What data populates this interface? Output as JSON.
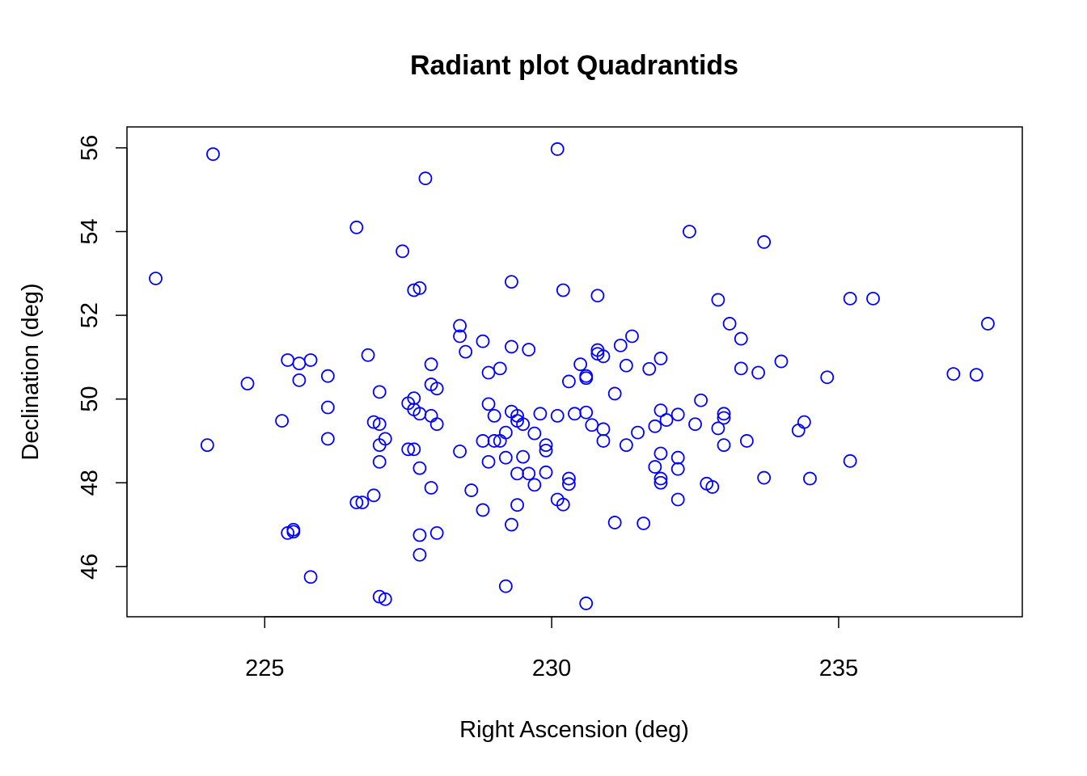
{
  "chart_data": {
    "type": "scatter",
    "title": "Radiant plot Quadrantids",
    "xlabel": "Right Ascension (deg)",
    "ylabel": "Declination (deg)",
    "xlim": [
      222.6,
      238.2
    ],
    "ylim": [
      44.8,
      56.5
    ],
    "xticks": [
      225,
      230,
      235
    ],
    "yticks": [
      46,
      48,
      50,
      52,
      54,
      56
    ],
    "grid": false,
    "legend": "none",
    "point_color": "#0000FF",
    "marker": "open-circle",
    "points": [
      [
        224.1,
        55.85
      ],
      [
        230.1,
        55.97
      ],
      [
        227.8,
        55.27
      ],
      [
        226.6,
        54.1
      ],
      [
        227.4,
        53.53
      ],
      [
        232.4,
        54.0
      ],
      [
        233.7,
        53.75
      ],
      [
        223.1,
        52.88
      ],
      [
        227.6,
        52.6
      ],
      [
        227.7,
        52.65
      ],
      [
        229.3,
        52.8
      ],
      [
        230.2,
        52.6
      ],
      [
        230.8,
        52.47
      ],
      [
        232.9,
        52.37
      ],
      [
        235.2,
        52.4
      ],
      [
        235.6,
        52.4
      ],
      [
        228.4,
        51.75
      ],
      [
        228.4,
        51.5
      ],
      [
        228.8,
        51.38
      ],
      [
        231.4,
        51.5
      ],
      [
        233.1,
        51.8
      ],
      [
        233.3,
        51.44
      ],
      [
        237.6,
        51.8
      ],
      [
        228.5,
        51.13
      ],
      [
        229.3,
        51.25
      ],
      [
        229.6,
        51.18
      ],
      [
        230.8,
        51.17
      ],
      [
        230.8,
        51.08
      ],
      [
        230.9,
        51.02
      ],
      [
        231.2,
        51.28
      ],
      [
        226.8,
        51.05
      ],
      [
        225.4,
        50.93
      ],
      [
        225.6,
        50.85
      ],
      [
        225.8,
        50.93
      ],
      [
        227.9,
        50.83
      ],
      [
        229.1,
        50.73
      ],
      [
        228.9,
        50.63
      ],
      [
        230.5,
        50.83
      ],
      [
        231.3,
        50.8
      ],
      [
        231.7,
        50.72
      ],
      [
        231.9,
        50.97
      ],
      [
        233.3,
        50.73
      ],
      [
        233.6,
        50.63
      ],
      [
        234.0,
        50.9
      ],
      [
        234.8,
        50.52
      ],
      [
        237.0,
        50.6
      ],
      [
        237.4,
        50.58
      ],
      [
        224.7,
        50.37
      ],
      [
        225.6,
        50.45
      ],
      [
        226.1,
        50.55
      ],
      [
        227.9,
        50.35
      ],
      [
        228.0,
        50.25
      ],
      [
        230.3,
        50.42
      ],
      [
        230.6,
        50.5
      ],
      [
        230.6,
        50.55
      ],
      [
        231.1,
        50.13
      ],
      [
        227.0,
        50.17
      ],
      [
        226.1,
        49.8
      ],
      [
        227.5,
        49.9
      ],
      [
        227.6,
        50.02
      ],
      [
        227.6,
        49.75
      ],
      [
        227.7,
        49.65
      ],
      [
        227.9,
        49.6
      ],
      [
        228.9,
        49.88
      ],
      [
        229.3,
        49.7
      ],
      [
        229.4,
        49.6
      ],
      [
        229.4,
        49.48
      ],
      [
        229.5,
        49.4
      ],
      [
        229.8,
        49.65
      ],
      [
        230.1,
        49.6
      ],
      [
        230.4,
        49.65
      ],
      [
        230.6,
        49.68
      ],
      [
        230.7,
        49.38
      ],
      [
        230.9,
        49.28
      ],
      [
        231.9,
        49.73
      ],
      [
        232.0,
        49.5
      ],
      [
        232.2,
        49.63
      ],
      [
        232.6,
        49.97
      ],
      [
        233.0,
        49.65
      ],
      [
        233.0,
        49.55
      ],
      [
        225.3,
        49.48
      ],
      [
        226.9,
        49.45
      ],
      [
        227.0,
        49.4
      ],
      [
        228.0,
        49.4
      ],
      [
        229.0,
        49.6
      ],
      [
        229.2,
        49.2
      ],
      [
        229.7,
        49.18
      ],
      [
        231.8,
        49.35
      ],
      [
        232.5,
        49.4
      ],
      [
        232.9,
        49.3
      ],
      [
        231.5,
        49.2
      ],
      [
        234.3,
        49.25
      ],
      [
        234.4,
        49.45
      ],
      [
        226.1,
        49.05
      ],
      [
        227.1,
        49.05
      ],
      [
        227.0,
        48.9
      ],
      [
        228.8,
        49.0
      ],
      [
        229.0,
        49.0
      ],
      [
        229.1,
        49.0
      ],
      [
        229.9,
        48.9
      ],
      [
        230.9,
        49.0
      ],
      [
        231.3,
        48.9
      ],
      [
        233.0,
        48.9
      ],
      [
        233.4,
        49.0
      ],
      [
        224.0,
        48.9
      ],
      [
        227.5,
        48.8
      ],
      [
        227.6,
        48.8
      ],
      [
        228.4,
        48.75
      ],
      [
        229.5,
        48.62
      ],
      [
        229.9,
        48.77
      ],
      [
        231.9,
        48.7
      ],
      [
        232.2,
        48.6
      ],
      [
        235.2,
        48.52
      ],
      [
        227.0,
        48.5
      ],
      [
        228.9,
        48.5
      ],
      [
        229.2,
        48.6
      ],
      [
        227.7,
        48.35
      ],
      [
        229.4,
        48.22
      ],
      [
        229.6,
        48.22
      ],
      [
        229.9,
        48.25
      ],
      [
        230.3,
        48.1
      ],
      [
        231.8,
        48.38
      ],
      [
        232.2,
        48.33
      ],
      [
        233.7,
        48.12
      ],
      [
        234.5,
        48.1
      ],
      [
        231.9,
        48.1
      ],
      [
        231.9,
        48.0
      ],
      [
        230.3,
        47.97
      ],
      [
        232.7,
        47.98
      ],
      [
        232.8,
        47.9
      ],
      [
        229.7,
        47.95
      ],
      [
        227.9,
        47.88
      ],
      [
        228.6,
        47.82
      ],
      [
        226.9,
        47.7
      ],
      [
        226.6,
        47.53
      ],
      [
        226.7,
        47.53
      ],
      [
        230.1,
        47.6
      ],
      [
        230.2,
        47.48
      ],
      [
        229.4,
        47.47
      ],
      [
        232.2,
        47.6
      ],
      [
        228.8,
        47.35
      ],
      [
        229.3,
        47.0
      ],
      [
        231.1,
        47.05
      ],
      [
        231.6,
        47.03
      ],
      [
        225.4,
        46.8
      ],
      [
        225.5,
        46.83
      ],
      [
        225.5,
        46.88
      ],
      [
        227.7,
        46.75
      ],
      [
        228.0,
        46.8
      ],
      [
        227.7,
        46.28
      ],
      [
        225.8,
        45.75
      ],
      [
        229.2,
        45.53
      ],
      [
        227.0,
        45.28
      ],
      [
        227.1,
        45.22
      ],
      [
        230.6,
        45.12
      ]
    ]
  }
}
